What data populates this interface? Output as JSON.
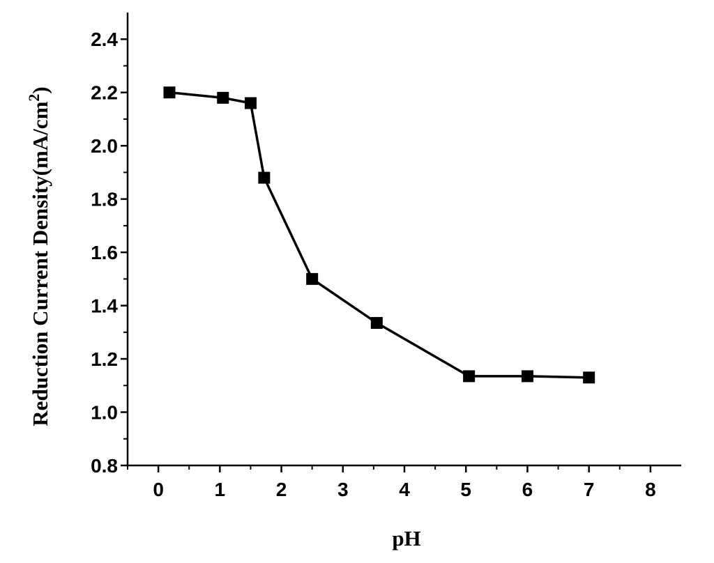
{
  "chart_data": {
    "type": "line",
    "title": "",
    "xlabel": "pH",
    "ylabel_main": "Reduction Current Density(mA/cm",
    "ylabel_sup": "2",
    "ylabel_close": ")",
    "xlim": [
      -0.5,
      8.5
    ],
    "ylim": [
      0.8,
      2.5
    ],
    "x_ticks": [
      0,
      1,
      2,
      3,
      4,
      5,
      6,
      7,
      8
    ],
    "x_tick_labels": [
      "0",
      "1",
      "2",
      "3",
      "4",
      "5",
      "6",
      "7",
      "8"
    ],
    "y_ticks": [
      0.8,
      1.0,
      1.2,
      1.4,
      1.6,
      1.8,
      2.0,
      2.2,
      2.4
    ],
    "y_tick_labels": [
      "0.8",
      "1.0",
      "1.2",
      "1.4",
      "1.6",
      "1.8",
      "2.0",
      "2.2",
      "2.4"
    ],
    "grid": false,
    "marker": "square",
    "color": "#000000",
    "series": [
      {
        "x": [
          0.18,
          1.05,
          1.5,
          1.72,
          2.5,
          3.55,
          5.05,
          6.0,
          7.0
        ],
        "y": [
          2.2,
          2.18,
          2.16,
          1.88,
          1.5,
          1.335,
          1.135,
          1.135,
          1.13
        ]
      }
    ]
  }
}
